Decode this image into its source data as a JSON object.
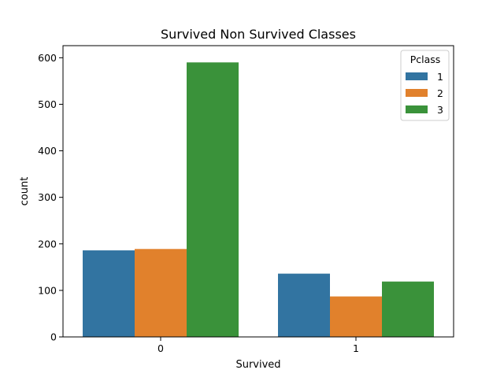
{
  "chart_data": {
    "type": "bar",
    "title": "Survived Non Survived Classes",
    "xlabel": "Survived",
    "ylabel": "count",
    "categories": [
      "0",
      "1"
    ],
    "series": [
      {
        "name": "1",
        "values": [
          186,
          136
        ],
        "color": "#3274a1"
      },
      {
        "name": "2",
        "values": [
          189,
          87
        ],
        "color": "#e1812c"
      },
      {
        "name": "3",
        "values": [
          590,
          119
        ],
        "color": "#3a923a"
      }
    ],
    "ylim": [
      0,
      626
    ],
    "yticks": [
      0,
      100,
      200,
      300,
      400,
      500,
      600
    ],
    "legend": {
      "title": "Pclass",
      "placement": "top-right"
    },
    "grid": false
  }
}
